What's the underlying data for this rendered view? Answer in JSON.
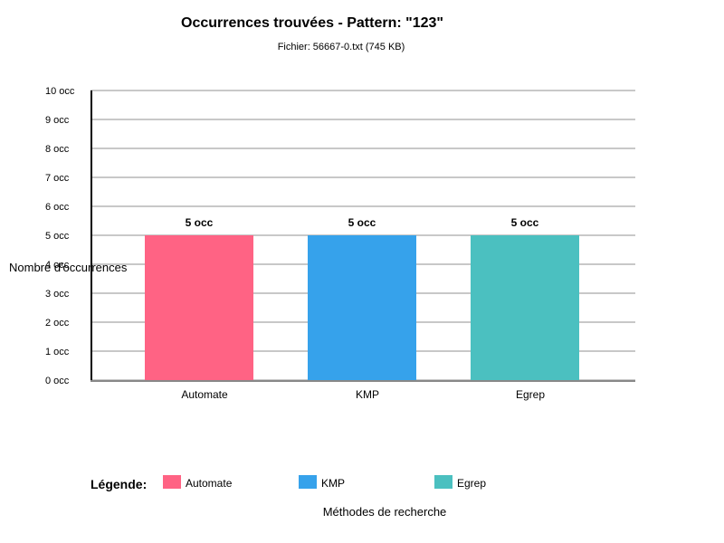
{
  "chart_data": {
    "type": "bar",
    "title": "Occurrences trouvées - Pattern: \"123\"",
    "subtitle": "Fichier: 56667-0.txt (745 KB)",
    "categories": [
      "Automate",
      "KMP",
      "Egrep"
    ],
    "values": [
      5,
      5,
      5
    ],
    "data_labels": [
      "5 occ",
      "5 occ",
      "5 occ"
    ],
    "colors": [
      "#ff6384",
      "#36a2eb",
      "#4bc0c0"
    ],
    "ylabel": "Nombre d'occurrences",
    "xlabel": "Méthodes de recherche",
    "ylim": [
      0,
      10
    ],
    "yticks": [
      0,
      1,
      2,
      3,
      4,
      5,
      6,
      7,
      8,
      9,
      10
    ],
    "ytick_suffix": " occ",
    "grid": true,
    "legend": {
      "title": "Légende:",
      "placement": "bottom",
      "entries": [
        "Automate",
        "KMP",
        "Egrep"
      ]
    }
  }
}
